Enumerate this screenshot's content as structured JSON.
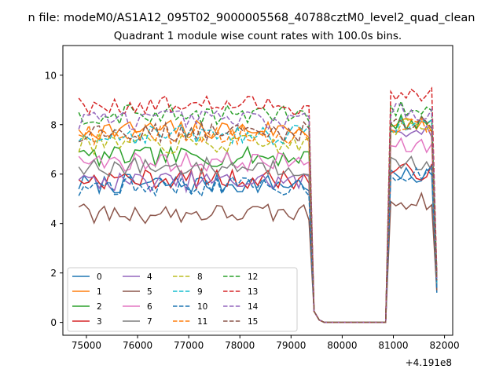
{
  "figure": {
    "suptitle": "n file: modeM0/AS1A12_095T02_9000005568_40788cztM0_level2_quad_clean",
    "title": "Quadrant 1 module wise count rates with 100.0s bins.",
    "x_offset_label": "+4.191e8"
  },
  "chart_data": {
    "type": "line",
    "title": "Quadrant 1 module wise count rates with 100.0s bins.",
    "xlabel": "",
    "ylabel": "",
    "x_offset": 419100000,
    "xlim": [
      74540,
      82160
    ],
    "ylim": [
      -0.52,
      11.2
    ],
    "xticks": [
      75000,
      76000,
      77000,
      78000,
      79000,
      80000,
      81000,
      82000
    ],
    "yticks": [
      0,
      2,
      4,
      6,
      8,
      10
    ],
    "xtick_labels": [
      "75000",
      "76000",
      "77000",
      "78000",
      "79000",
      "80000",
      "81000",
      "82000"
    ],
    "ytick_labels": [
      "0",
      "2",
      "4",
      "6",
      "8",
      "10"
    ],
    "grid": false,
    "legend": {
      "position": "lower-left",
      "columns": 4
    },
    "time_axis": {
      "segment1": [
        74850,
        79350
      ],
      "drop": [
        79450,
        79550
      ],
      "gap": [
        79650,
        80850
      ],
      "segment2": [
        80950,
        81850
      ],
      "step": 100
    },
    "series": [
      {
        "name": "0",
        "color": "#1f77b4",
        "dash": "solid",
        "level1": 5.6,
        "level2": 5.9,
        "end": 1.2
      },
      {
        "name": "1",
        "color": "#ff7f0e",
        "dash": "solid",
        "level1": 7.8,
        "level2": 8.0,
        "end": 1.6
      },
      {
        "name": "2",
        "color": "#2ca02c",
        "dash": "solid",
        "level1": 6.7,
        "level2": 8.1,
        "end": 1.8
      },
      {
        "name": "3",
        "color": "#d62728",
        "dash": "solid",
        "level1": 5.8,
        "level2": 6.1,
        "end": 1.6
      },
      {
        "name": "4",
        "color": "#9467bd",
        "dash": "solid",
        "level1": 5.7,
        "level2": 7.8,
        "end": 1.7
      },
      {
        "name": "5",
        "color": "#8c564b",
        "dash": "solid",
        "level1": 4.4,
        "level2": 4.9,
        "end": 1.3
      },
      {
        "name": "6",
        "color": "#e377c2",
        "dash": "solid",
        "level1": 6.5,
        "level2": 7.1,
        "end": 1.7
      },
      {
        "name": "7",
        "color": "#7f7f7f",
        "dash": "solid",
        "level1": 6.3,
        "level2": 6.4,
        "end": 1.5
      },
      {
        "name": "8",
        "color": "#bcbd22",
        "dash": "dashed",
        "level1": 7.2,
        "level2": 7.9,
        "end": 1.7
      },
      {
        "name": "9",
        "color": "#17becf",
        "dash": "dashed",
        "level1": 7.6,
        "level2": 8.0,
        "end": 1.6
      },
      {
        "name": "10",
        "color": "#1f77b4",
        "dash": "dashed",
        "level1": 5.5,
        "level2": 6.0,
        "end": 1.4
      },
      {
        "name": "11",
        "color": "#ff7f0e",
        "dash": "dashed",
        "level1": 7.6,
        "level2": 8.0,
        "end": 1.8
      },
      {
        "name": "12",
        "color": "#2ca02c",
        "dash": "dashed",
        "level1": 8.4,
        "level2": 8.6,
        "end": 1.9
      },
      {
        "name": "13",
        "color": "#d62728",
        "dash": "dashed",
        "level1": 8.8,
        "level2": 9.2,
        "end": 2.0
      },
      {
        "name": "14",
        "color": "#9467bd",
        "dash": "dashed",
        "level1": 8.2,
        "level2": 8.5,
        "end": 1.8
      },
      {
        "name": "15",
        "color": "#8c564b",
        "dash": "dashed",
        "level1": 7.7,
        "level2": 8.1,
        "end": 1.7
      }
    ]
  }
}
